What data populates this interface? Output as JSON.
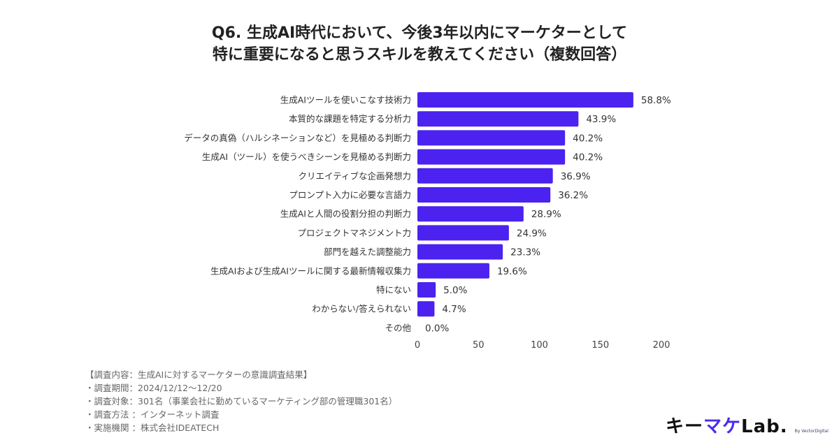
{
  "chart_data": {
    "type": "bar",
    "orientation": "horizontal",
    "title": [
      "Q6. 生成AI時代において、今後3年以内にマーケターとして",
      "特に重要になると思うスキルを教えてください（複数回答）"
    ],
    "categories": [
      "生成AIツールを使いこなす技術力",
      "本質的な課題を特定する分析力",
      "データの真偽（ハルシネーションなど）を見極める判断力",
      "生成AI（ツール）を使うべきシーンを見極める判断力",
      "クリエイティブな企画発想力",
      "プロンプト入力に必要な言語力",
      "生成AIと人間の役割分担の判断力",
      "プロジェクトマネジメント力",
      "部門を越えた調整能力",
      "生成AIおよび生成AIツールに関する最新情報収集力",
      "特にない",
      "わからない/答えられない",
      "その他"
    ],
    "values": [
      177,
      132,
      121,
      121,
      111,
      109,
      87,
      75,
      70,
      59,
      15,
      14,
      0
    ],
    "labels": [
      "58.8%",
      "43.9%",
      "40.2%",
      "40.2%",
      "36.9%",
      "36.2%",
      "28.9%",
      "24.9%",
      "23.3%",
      "19.6%",
      "5.0%",
      "4.7%",
      "0.0%"
    ],
    "xlim": [
      0,
      200
    ],
    "xticks": [
      "0",
      "50",
      "100",
      "150",
      "200"
    ],
    "xtick_values": [
      0,
      50,
      100,
      150,
      200
    ],
    "grid": false,
    "bar_color": "#4b22ef"
  },
  "notes": [
    "【調査内容：生成AIに対するマーケターの意識調査結果】",
    "・調査期間：2024/12/12〜12/20",
    "・調査対象：301名（事業会社に勤めているマーケティング部の管理職301名）",
    "・調査方法 ：インターネット調査",
    "・実施機関 ：株式会社IDEATECH"
  ],
  "logo": {
    "text_a": "キー",
    "text_b": "マケ",
    "text_c": "Lab.",
    "by": "By VectorDigital"
  }
}
